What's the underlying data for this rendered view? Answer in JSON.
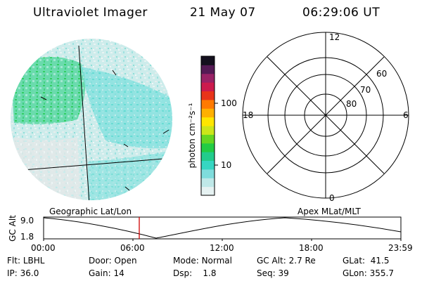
{
  "header": {
    "title": "Ultraviolet Imager",
    "date": "21 May 07",
    "time": "06:29:06 UT"
  },
  "colorbar": {
    "unit_label": "photon cm⁻²s⁻¹",
    "tick_labels": [
      "100",
      "10"
    ],
    "colors": [
      "#e6f2f2",
      "#bfe8e8",
      "#7fdcdc",
      "#36d6c2",
      "#22cc8c",
      "#22cc44",
      "#66d622",
      "#cce61a",
      "#ffe600",
      "#ffb000",
      "#ff7a00",
      "#e8341a",
      "#cc1a4d",
      "#992266",
      "#551a55",
      "#14101e"
    ]
  },
  "polar_grid": {
    "mlt_labels": {
      "top": "12",
      "right": "6",
      "bottom": "0",
      "left": "18"
    },
    "lat_labels": [
      "60",
      "70",
      "80"
    ]
  },
  "orbit_plot": {
    "left_label": "Geographic Lat/Lon",
    "right_label": "Apex MLat/MLT",
    "y_axis_label": "GC Alt",
    "y_ticks": [
      "9.0",
      "1.8"
    ],
    "x_ticks": [
      "00:00",
      "06:00",
      "12:00",
      "18:00",
      "23:59"
    ],
    "curve_color": "#000000",
    "marker_color": "#d00000"
  },
  "footer": {
    "row1": [
      {
        "label": "Flt:",
        "value": "LBHL"
      },
      {
        "label": "Door:",
        "value": "Open"
      },
      {
        "label": "Mode:",
        "value": "Normal"
      },
      {
        "label": "GC Alt:",
        "value": "2.7 Re"
      },
      {
        "label": "GLat:",
        "value": "41.5"
      }
    ],
    "row2": [
      {
        "label": "IP:",
        "value": "36.0"
      },
      {
        "label": "Gain:",
        "value": "14"
      },
      {
        "label": "Dsp:",
        "value": "1.8"
      },
      {
        "label": "Seq:",
        "value": "39"
      },
      {
        "label": "GLon:",
        "value": "355.7"
      }
    ]
  }
}
